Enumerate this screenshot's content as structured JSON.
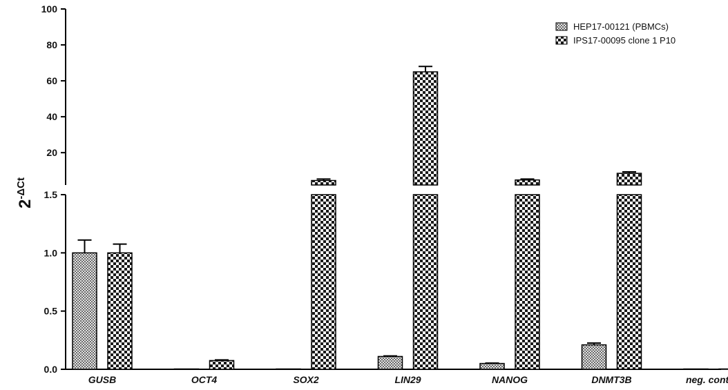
{
  "chart_data": {
    "type": "bar",
    "ylabel": {
      "base": "2",
      "exponent": "-ΔCt"
    },
    "categories": [
      "GUSB",
      "OCT4",
      "SOX2",
      "LIN29",
      "NANOG",
      "DNMT3B",
      "neg. control"
    ],
    "y_axis": {
      "broken": true,
      "lower_segment": {
        "ylim": [
          0,
          1.5
        ],
        "ticks": [
          0.0,
          0.5,
          1.0,
          1.5
        ],
        "tick_labels": [
          "0.0",
          "0.5",
          "1.0",
          "1.5"
        ]
      },
      "upper_segment": {
        "ylim": [
          2,
          100
        ],
        "ticks": [
          20,
          40,
          60,
          80,
          100
        ],
        "tick_labels": [
          "20",
          "40",
          "60",
          "80",
          "100"
        ]
      }
    },
    "series": [
      {
        "name": "HEP17-00121 (PBMCs)",
        "pattern": "fine-check",
        "values": [
          1.0,
          0.003,
          0.0,
          0.11,
          0.05,
          0.21,
          0.0
        ],
        "errors": [
          0.11,
          0.0,
          0.0,
          0.005,
          0.003,
          0.015,
          0.0
        ]
      },
      {
        "name": "IPS17-00095 clone 1 P10",
        "pattern": "coarse-check",
        "values": [
          1.0,
          0.075,
          4.5,
          65,
          4.8,
          8.5,
          0.003
        ],
        "errors": [
          0.075,
          0.006,
          0.8,
          3.0,
          0.5,
          0.8,
          0.0
        ]
      }
    ],
    "grid": false,
    "legend_position": "top-right"
  }
}
